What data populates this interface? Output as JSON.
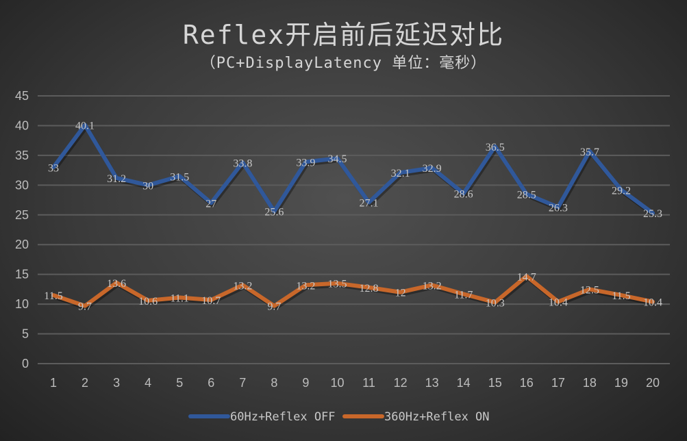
{
  "chart_data": {
    "type": "line",
    "title": "Reflex开启前后延迟对比",
    "subtitle": "（PC+DisplayLatency 单位：毫秒）",
    "categories": [
      "1",
      "2",
      "3",
      "4",
      "5",
      "6",
      "7",
      "8",
      "9",
      "10",
      "11",
      "12",
      "13",
      "14",
      "15",
      "16",
      "17",
      "18",
      "19",
      "20"
    ],
    "yticks": [
      "0",
      "5",
      "10",
      "15",
      "20",
      "25",
      "30",
      "35",
      "40",
      "45"
    ],
    "ylim": [
      0,
      45
    ],
    "grid": true,
    "legend_position": "bottom",
    "series": [
      {
        "name": "60Hz+Reflex OFF",
        "color": "#30589a",
        "values": [
          33,
          40.1,
          31.2,
          30,
          31.5,
          27,
          33.8,
          25.6,
          33.9,
          34.5,
          27.1,
          32.1,
          32.9,
          28.6,
          36.5,
          28.5,
          26.3,
          35.7,
          29.2,
          25.3
        ],
        "labels": [
          "33",
          "40.1",
          "31.2",
          "30",
          "31.5",
          "27",
          "33.8",
          "25.6",
          "33.9",
          "34.5",
          "27.1",
          "32.1",
          "32.9",
          "28.6",
          "36.5",
          "28.5",
          "26.3",
          "35.7",
          "29.2",
          "25.3"
        ]
      },
      {
        "name": "360Hz+Reflex ON",
        "color": "#c8672a",
        "values": [
          11.5,
          9.7,
          13.6,
          10.6,
          11.1,
          10.7,
          13.2,
          9.7,
          13.2,
          13.5,
          12.8,
          12,
          13.2,
          11.7,
          10.3,
          14.7,
          10.4,
          12.5,
          11.5,
          10.4
        ],
        "labels": [
          "11.5",
          "9.7",
          "13.6",
          "10.6",
          "11.1",
          "10.7",
          "13.2",
          "9.7",
          "13.2",
          "13.5",
          "12.8",
          "12",
          "13.2",
          "11.7",
          "10.3",
          "14.7",
          "10.4",
          "12.5",
          "11.5",
          "10.4"
        ]
      }
    ]
  }
}
